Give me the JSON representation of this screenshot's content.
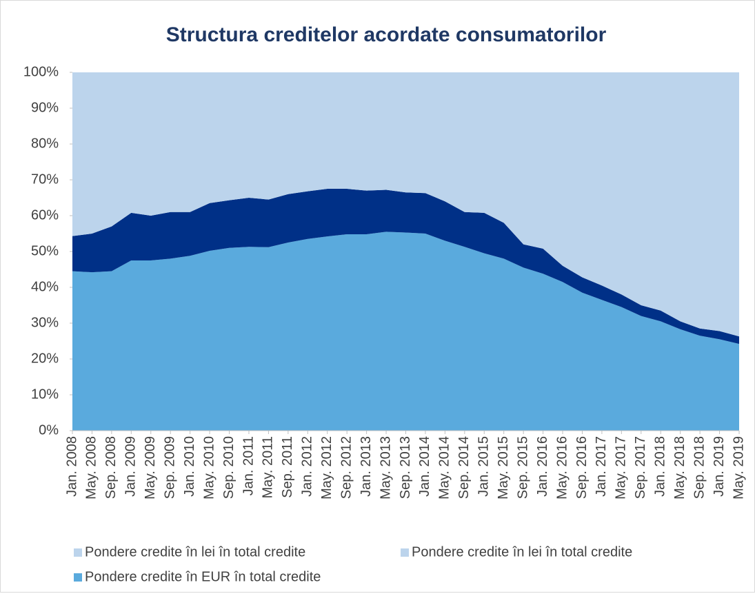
{
  "chart_data": {
    "type": "stacked_area",
    "title": "Structura creditelor acordate consumatorilor",
    "categories": [
      "Jan. 2008",
      "May. 2008",
      "Sep. 2008",
      "Jan. 2009",
      "May. 2009",
      "Sep. 2009",
      "Jan. 2010",
      "May. 2010",
      "Sep. 2010",
      "Jan. 2011",
      "May. 2011",
      "Sep. 2011",
      "Jan. 2012",
      "May. 2012",
      "Sep. 2012",
      "Jan. 2013",
      "May. 2013",
      "Sep. 2013",
      "Jan. 2014",
      "May. 2014",
      "Sep. 2014",
      "Jan. 2015",
      "May. 2015",
      "Sep. 2015",
      "Jan. 2016",
      "May. 2016",
      "Sep. 2016",
      "Jan. 2017",
      "May. 2017",
      "Sep. 2017",
      "Jan. 2018",
      "May. 2018",
      "Sep. 2018",
      "Jan. 2019",
      "May. 2019"
    ],
    "series": [
      {
        "name": "Pondere credite în EUR în total credite",
        "color": "#5aaadd",
        "legend_color": "#5aaadd",
        "values": [
          44.5,
          44.2,
          44.5,
          47.5,
          47.5,
          48,
          48.8,
          50.2,
          51,
          51.3,
          51.2,
          52.5,
          53.5,
          54.2,
          54.8,
          54.8,
          55.5,
          55.3,
          55,
          53,
          51.3,
          49.5,
          48,
          45.5,
          43.8,
          41.5,
          38.5,
          36.5,
          34.5,
          32,
          30.5,
          28.3,
          26.5,
          25.5,
          24.2
        ]
      },
      {
        "name": "Pondere credite în lei în total credite",
        "color": "#003087",
        "legend_color": "#bcd4ec",
        "values": [
          9.8,
          10.8,
          12.5,
          13.3,
          12.5,
          13,
          12.2,
          13.3,
          13.3,
          13.7,
          13.3,
          13.5,
          13.3,
          13.3,
          12.7,
          12.2,
          11.7,
          11.2,
          11.3,
          11,
          9.7,
          11.3,
          10,
          6.5,
          7,
          4.5,
          4.3,
          4,
          3.5,
          3,
          3,
          2.2,
          2,
          2.3,
          2.1
        ]
      },
      {
        "name": "Pondere credite în lei în total credite",
        "color": "#bcd4ec",
        "legend_color": "#bcd4ec",
        "values": [
          45.7,
          45,
          43,
          39.2,
          40,
          39,
          39,
          36.5,
          35.7,
          35,
          35.5,
          34,
          33.2,
          32.5,
          32.5,
          33,
          32.8,
          33.5,
          33.7,
          36,
          39,
          39.2,
          42,
          48,
          49.2,
          54,
          57.2,
          59.5,
          62,
          65,
          66.5,
          69.5,
          71.5,
          72.2,
          73.7
        ]
      }
    ],
    "ylim": [
      0,
      100
    ],
    "yticks": [
      {
        "value": 0,
        "label": "0%"
      },
      {
        "value": 10,
        "label": "10%"
      },
      {
        "value": 20,
        "label": "20%"
      },
      {
        "value": 30,
        "label": "30%"
      },
      {
        "value": 40,
        "label": "40%"
      },
      {
        "value": 50,
        "label": "50%"
      },
      {
        "value": 60,
        "label": "60%"
      },
      {
        "value": 70,
        "label": "70%"
      },
      {
        "value": 80,
        "label": "80%"
      },
      {
        "value": 90,
        "label": "90%"
      },
      {
        "value": 100,
        "label": "100%"
      }
    ],
    "legend_order": [
      2,
      1,
      0
    ]
  }
}
